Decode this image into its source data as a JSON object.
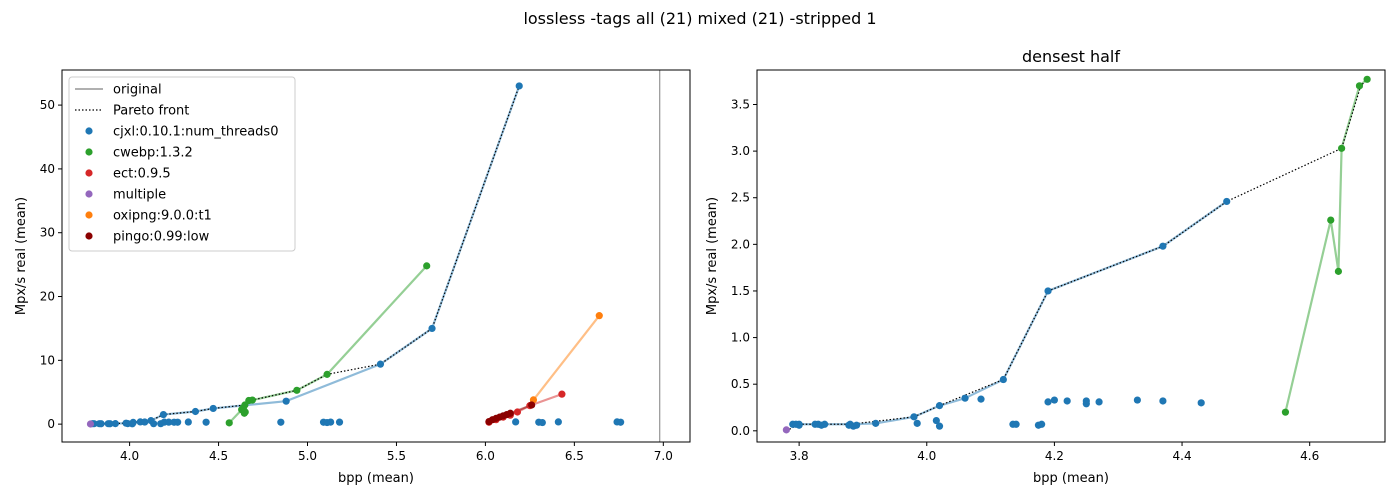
{
  "suptitle": "lossless -tags all (21) mixed (21) -stripped 1",
  "chart_data": [
    {
      "type": "scatter",
      "title": "",
      "xlabel": "bpp (mean)",
      "ylabel": "Mpx/s real (mean)",
      "xlim": [
        3.62,
        7.15
      ],
      "ylim": [
        -2.8,
        55.5
      ],
      "xticks": [
        4.0,
        4.5,
        5.0,
        5.5,
        6.0,
        6.5,
        7.0
      ],
      "yticks": [
        0,
        10,
        20,
        30,
        40,
        50
      ],
      "tick_decimals_x": 1,
      "tick_decimals_y": 0,
      "grid": false,
      "legend_position": "top-left",
      "reference_line": {
        "label": "original",
        "x": 6.98,
        "color": "#808080"
      },
      "pareto": {
        "label": "Pareto front",
        "x": [
          3.78,
          3.8,
          3.83,
          3.88,
          3.98,
          4.02,
          4.12,
          4.19,
          4.37,
          4.47,
          4.65,
          4.69,
          4.94,
          5.11,
          5.41,
          5.7,
          6.19
        ],
        "y": [
          0.0,
          0.07,
          0.07,
          0.07,
          0.15,
          0.27,
          0.55,
          1.5,
          1.98,
          2.46,
          3.0,
          3.77,
          5.3,
          7.8,
          9.4,
          15.0,
          53.0
        ]
      },
      "series": [
        {
          "name": "cjxl:0.10.1:num_threads0",
          "color": "#1f77b4",
          "line": true,
          "x": [
            3.79,
            3.8,
            3.83,
            3.88,
            3.92,
            3.98,
            4.02,
            4.06,
            4.12,
            4.19,
            4.37,
            4.47,
            4.88,
            5.41,
            5.7,
            6.19
          ],
          "y": [
            0.07,
            0.07,
            0.07,
            0.07,
            0.08,
            0.15,
            0.27,
            0.35,
            0.55,
            1.5,
            1.98,
            2.46,
            3.6,
            9.4,
            15.0,
            53.0
          ],
          "extra_points_x": [
            3.84,
            3.89,
            3.99,
            4.015,
            4.085,
            4.135,
            4.175,
            4.195,
            4.22,
            4.25,
            4.27,
            4.33,
            4.43,
            4.85,
            5.09,
            5.11,
            5.13,
            5.18,
            6.17,
            6.3,
            6.32,
            6.41,
            6.74,
            6.76
          ],
          "extra_points_y": [
            0.06,
            0.06,
            0.08,
            0.05,
            0.33,
            0.07,
            0.07,
            0.31,
            0.31,
            0.3,
            0.3,
            0.33,
            0.3,
            0.3,
            0.3,
            0.25,
            0.32,
            0.31,
            0.35,
            0.3,
            0.25,
            0.35,
            0.35,
            0.3
          ]
        },
        {
          "name": "cwebp:1.3.2",
          "color": "#2ca02c",
          "line": true,
          "x": [
            4.56,
            4.63,
            4.645,
            4.648,
            4.67,
            4.69,
            4.94,
            5.11,
            5.67
          ],
          "y": [
            0.2,
            2.26,
            1.71,
            3.0,
            3.7,
            3.77,
            5.3,
            7.8,
            24.8
          ],
          "extra_points_x": [
            4.64,
            4.65
          ],
          "extra_points_y": [
            2.6,
            1.9
          ]
        },
        {
          "name": "ect:0.9.5",
          "color": "#d62728",
          "line": true,
          "x": [
            6.02,
            6.06,
            6.1,
            6.14,
            6.18,
            6.25,
            6.43
          ],
          "y": [
            0.3,
            0.7,
            1.1,
            1.4,
            1.9,
            2.9,
            4.7
          ]
        },
        {
          "name": "multiple",
          "color": "#9467bd",
          "line": false,
          "x": [
            3.78
          ],
          "y": [
            0.02
          ]
        },
        {
          "name": "oxipng:9.0.0:t1",
          "color": "#ff7f0e",
          "line": true,
          "x": [
            6.27,
            6.64
          ],
          "y": [
            3.8,
            17.0
          ]
        },
        {
          "name": "pingo:0.99:low",
          "color": "#8b0000",
          "line": true,
          "x": [
            6.02,
            6.04,
            6.06,
            6.08,
            6.1,
            6.12,
            6.14,
            6.26
          ],
          "y": [
            0.4,
            0.7,
            0.9,
            1.1,
            1.3,
            1.5,
            1.7,
            3.0
          ]
        }
      ]
    },
    {
      "type": "scatter",
      "title": "densest half",
      "xlabel": "bpp (mean)",
      "ylabel": "Mpx/s real (mean)",
      "xlim": [
        3.734,
        4.718
      ],
      "ylim": [
        -0.12,
        3.87
      ],
      "xticks": [
        3.8,
        4.0,
        4.2,
        4.4,
        4.6
      ],
      "yticks": [
        0.0,
        0.5,
        1.0,
        1.5,
        2.0,
        2.5,
        3.0,
        3.5
      ],
      "tick_decimals_x": 1,
      "tick_decimals_y": 1,
      "grid": false,
      "pareto": {
        "label": "Pareto front",
        "x": [
          3.78,
          3.8,
          3.83,
          3.88,
          3.98,
          4.02,
          4.12,
          4.19,
          4.37,
          4.47,
          4.65,
          4.68,
          4.69
        ],
        "y": [
          0.0,
          0.07,
          0.07,
          0.07,
          0.15,
          0.27,
          0.55,
          1.5,
          1.98,
          2.46,
          3.03,
          3.7,
          3.77
        ]
      },
      "series": [
        {
          "name": "cjxl:0.10.1:num_threads0",
          "color": "#1f77b4",
          "line": true,
          "x": [
            3.79,
            3.8,
            3.83,
            3.88,
            3.92,
            3.98,
            4.02,
            4.06,
            4.12,
            4.19,
            4.37,
            4.47
          ],
          "y": [
            0.07,
            0.07,
            0.07,
            0.07,
            0.08,
            0.15,
            0.27,
            0.35,
            0.55,
            1.5,
            1.98,
            2.46
          ],
          "extra_points_x": [
            3.795,
            3.8,
            3.825,
            3.835,
            3.84,
            3.878,
            3.885,
            3.89,
            3.985,
            4.015,
            4.02,
            4.085,
            4.135,
            4.14,
            4.175,
            4.18,
            4.19,
            4.2,
            4.22,
            4.25,
            4.25,
            4.27,
            4.33,
            4.37,
            4.43
          ],
          "extra_points_y": [
            0.07,
            0.06,
            0.07,
            0.06,
            0.07,
            0.06,
            0.05,
            0.06,
            0.08,
            0.11,
            0.05,
            0.34,
            0.07,
            0.07,
            0.06,
            0.07,
            0.31,
            0.33,
            0.32,
            0.29,
            0.32,
            0.31,
            0.33,
            0.32,
            0.3
          ]
        },
        {
          "name": "cwebp:1.3.2",
          "color": "#2ca02c",
          "line": true,
          "x": [
            4.562,
            4.633,
            4.645,
            4.65,
            4.678,
            4.69
          ],
          "y": [
            0.2,
            2.26,
            1.71,
            3.03,
            3.7,
            3.77
          ]
        },
        {
          "name": "multiple",
          "color": "#9467bd",
          "line": false,
          "x": [
            3.78
          ],
          "y": [
            0.01
          ]
        }
      ]
    }
  ]
}
